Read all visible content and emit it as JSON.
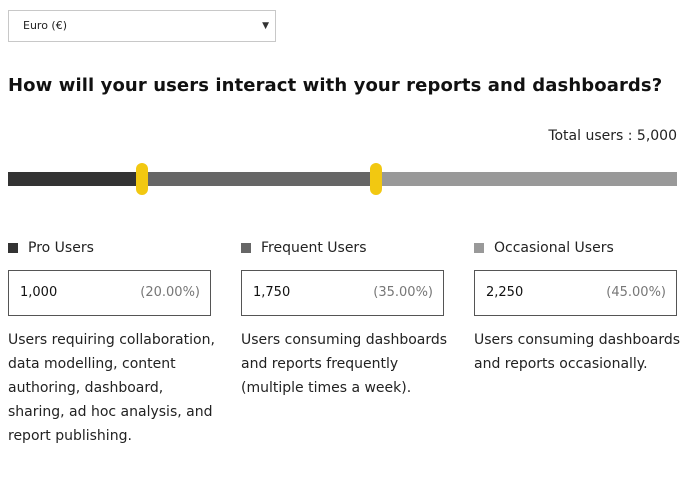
{
  "currency": {
    "selected": "Euro (€)",
    "arrow": "▼"
  },
  "heading": "How will your users interact with your reports and dashboards?",
  "total_users": "Total users : 5,000",
  "slider": {
    "handle_color": "#f2c811",
    "segments": [
      {
        "name": "Pro Users",
        "fraction": 0.2,
        "color": "#333333"
      },
      {
        "name": "Frequent Users",
        "fraction": 0.35,
        "color": "#666666"
      },
      {
        "name": "Occasional Users",
        "fraction": 0.45,
        "color": "#999999"
      }
    ]
  },
  "columns": [
    {
      "title": "Pro Users",
      "swatch_color": "#333333",
      "count": "1,000",
      "percent": "(20.00%)",
      "description": "Users requiring collaboration, data modelling, content authoring, dashboard, sharing, ad hoc analysis, and report publishing."
    },
    {
      "title": "Frequent Users",
      "swatch_color": "#666666",
      "count": "1,750",
      "percent": "(35.00%)",
      "description": "Users consuming dashboards and reports frequently (multiple times a week)."
    },
    {
      "title": "Occasional Users",
      "swatch_color": "#999999",
      "count": "2,250",
      "percent": "(45.00%)",
      "description": "Users consuming dashboards and reports occasionally."
    }
  ]
}
